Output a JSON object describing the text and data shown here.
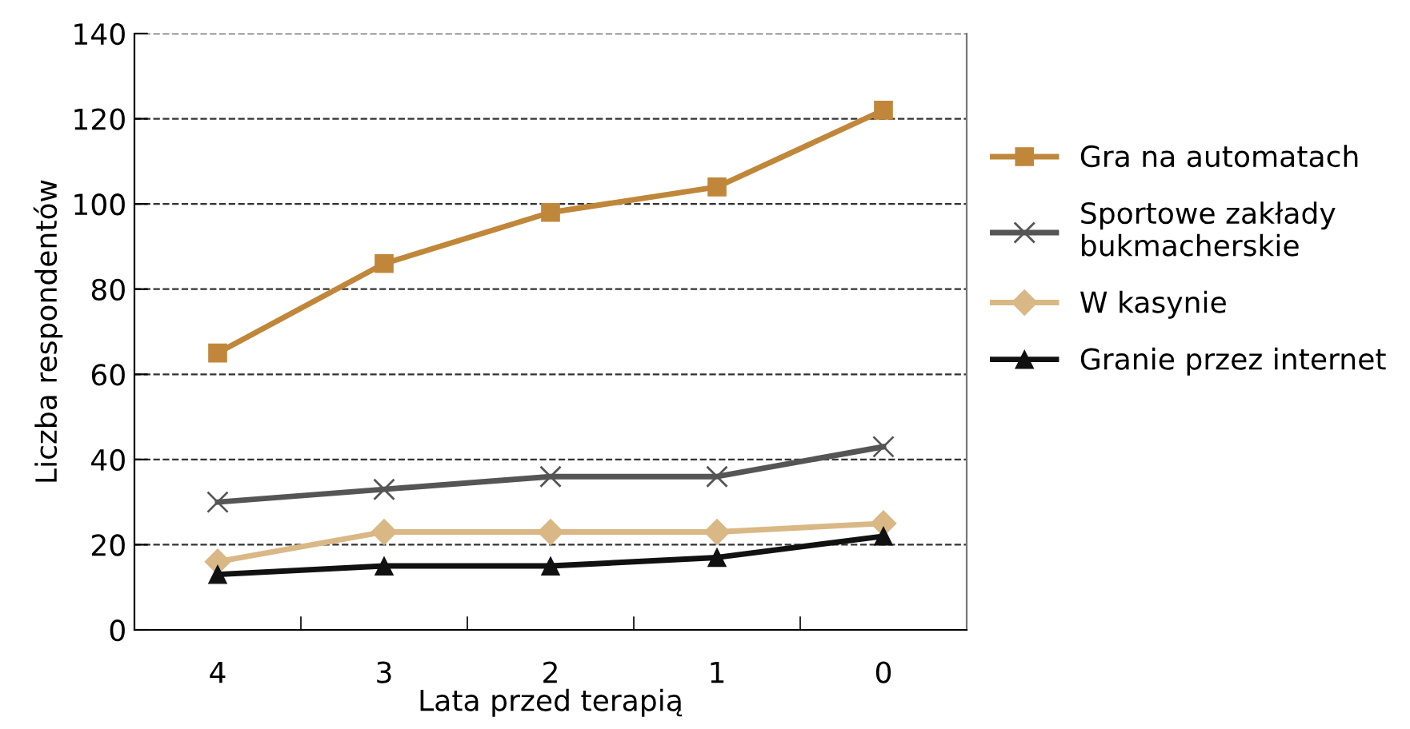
{
  "chart_data": {
    "type": "line",
    "xlabel": "Lata przed terapią",
    "ylabel": "Liczba respondentów",
    "categories": [
      "4",
      "3",
      "2",
      "1",
      "0"
    ],
    "ylim": [
      0,
      140
    ],
    "yticks": [
      0,
      20,
      40,
      60,
      80,
      100,
      120,
      140
    ],
    "grid": "y",
    "legend": "right",
    "line_style": "solid",
    "series": [
      {
        "name": "Gra na automatach",
        "color": "#c0873a",
        "marker": "square",
        "values": [
          65,
          86,
          98,
          104,
          122
        ]
      },
      {
        "name": "Sportowe zakłady\nbukmacherskie",
        "color": "#555555",
        "marker": "cross",
        "values": [
          30,
          33,
          36,
          36,
          43
        ]
      },
      {
        "name": "W kasynie",
        "color": "#d9b886",
        "marker": "diamond",
        "values": [
          16,
          23,
          23,
          23,
          25
        ]
      },
      {
        "name": "Granie przez internet",
        "color": "#111111",
        "marker": "triangle",
        "values": [
          13,
          15,
          15,
          17,
          22
        ]
      }
    ]
  }
}
